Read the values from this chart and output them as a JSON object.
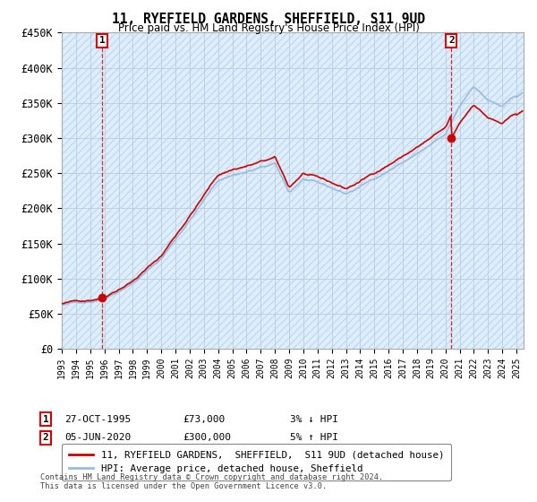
{
  "title": "11, RYEFIELD GARDENS, SHEFFIELD, S11 9UD",
  "subtitle": "Price paid vs. HM Land Registry's House Price Index (HPI)",
  "ylim": [
    0,
    450000
  ],
  "yticks": [
    0,
    50000,
    100000,
    150000,
    200000,
    250000,
    300000,
    350000,
    400000,
    450000
  ],
  "ytick_labels": [
    "£0",
    "£50K",
    "£100K",
    "£150K",
    "£200K",
    "£250K",
    "£300K",
    "£350K",
    "£400K",
    "£450K"
  ],
  "legend_property": "11, RYEFIELD GARDENS,  SHEFFIELD,  S11 9UD (detached house)",
  "legend_hpi": "HPI: Average price, detached house, Sheffield",
  "sale1_date": "27-OCT-1995",
  "sale1_price": "£73,000",
  "sale1_hpi": "3% ↓ HPI",
  "sale2_date": "05-JUN-2020",
  "sale2_price": "£300,000",
  "sale2_hpi": "5% ↑ HPI",
  "footnote": "Contains HM Land Registry data © Crown copyright and database right 2024.\nThis data is licensed under the Open Government Licence v3.0.",
  "property_color": "#cc0000",
  "hpi_color": "#99bbdd",
  "background_color": "#ffffff",
  "plot_bg_color": "#ddeeff",
  "grid_color": "#bbccdd",
  "hatch_color": "#c8d8e8",
  "sale1_x": 1995.83,
  "sale1_y": 73000,
  "sale2_x": 2020.42,
  "sale2_y": 300000,
  "marker_box_color": "#cc0000",
  "xlim_left": 1993.0,
  "xlim_right": 2025.5
}
